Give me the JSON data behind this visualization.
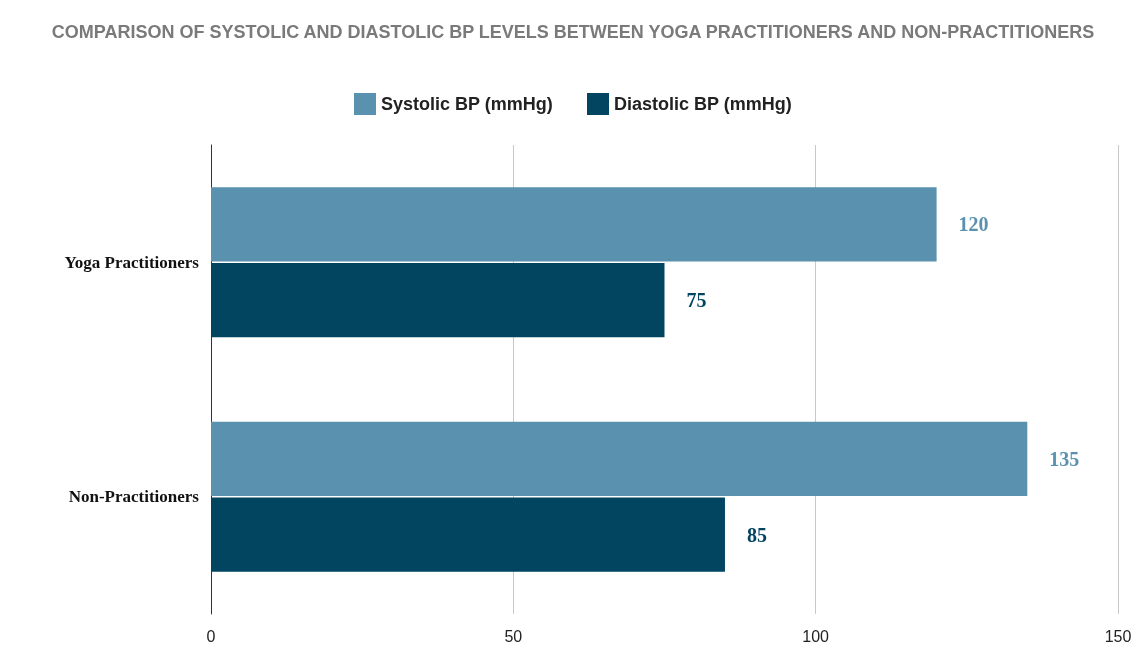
{
  "chart_data": {
    "type": "bar",
    "orientation": "horizontal",
    "title": "COMPARISON OF SYSTOLIC AND DIASTOLIC BP LEVELS BETWEEN YOGA PRACTITIONERS AND NON-PRACTITIONERS",
    "categories": [
      "Yoga Practitioners",
      "Non-Practitioners"
    ],
    "series": [
      {
        "name": "Systolic BP (mmHg)",
        "color": "#5a91ae",
        "values": [
          120,
          135
        ]
      },
      {
        "name": "Diastolic BP (mmHg)",
        "color": "#024561",
        "values": [
          75,
          85
        ]
      }
    ],
    "xlim": [
      0,
      150
    ],
    "xticks": [
      0,
      50,
      100,
      150
    ],
    "grid": "x",
    "legend": "top",
    "data_labels": true
  }
}
